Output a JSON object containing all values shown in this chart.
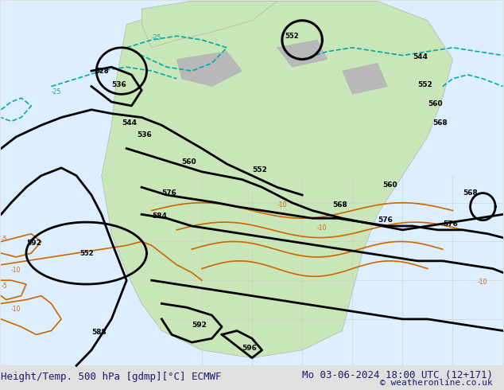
{
  "title_left": "Height/Temp. 500 hPa [gdmp][°C] ECMWF",
  "title_right": "Mo 03-06-2024 18:00 UTC (12+171)",
  "copyright": "© weatheronline.co.uk",
  "bg_color": "#e8e8e8",
  "land_color": "#c8e6c8",
  "ocean_color": "#ddeeff",
  "contour_color_height": "#000000",
  "contour_color_temp_warm": "#cc6600",
  "contour_color_temp_cold": "#00aaaa",
  "text_color": "#1a1a6e",
  "title_fontsize": 9,
  "copyright_fontsize": 8
}
